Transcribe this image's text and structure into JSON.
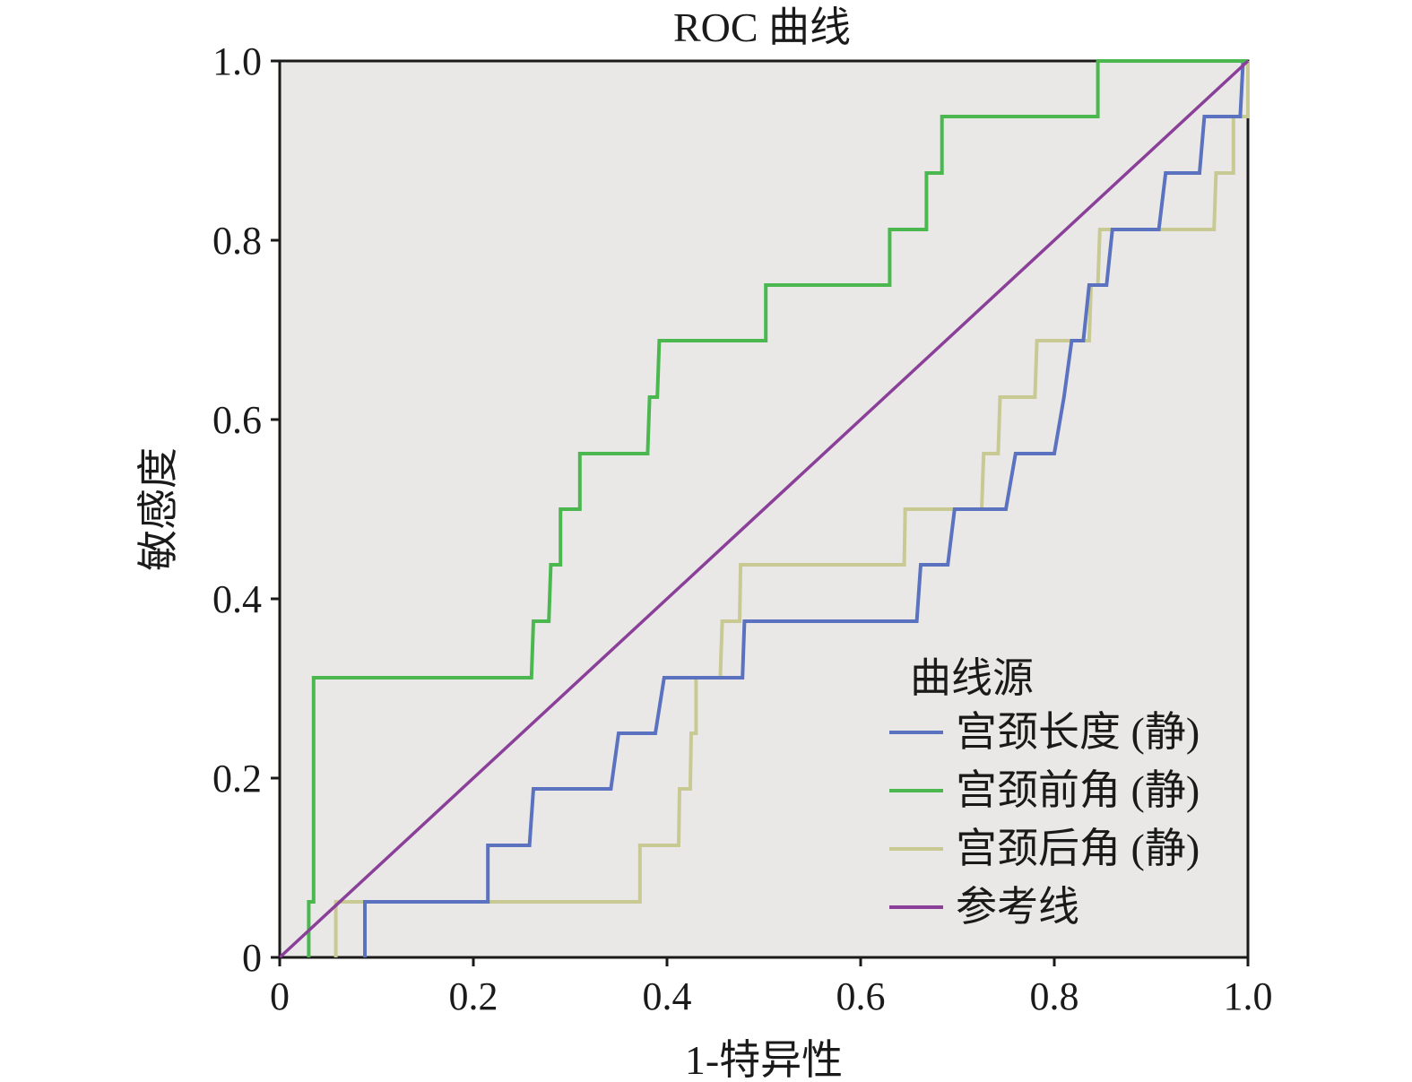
{
  "chart_data": {
    "type": "line",
    "title": "ROC 曲线",
    "xlabel": "1-特异性",
    "ylabel": "敏感度",
    "xlim": [
      0,
      1
    ],
    "ylim": [
      0,
      1
    ],
    "x_ticks": [
      0,
      0.2,
      0.4,
      0.6,
      0.8,
      1.0
    ],
    "y_ticks": [
      0,
      0.2,
      0.4,
      0.6,
      0.8,
      1.0
    ],
    "x_tick_labels": [
      "0",
      "0.2",
      "0.4",
      "0.6",
      "0.8",
      "1.0"
    ],
    "y_tick_labels": [
      "0",
      "0.2",
      "0.4",
      "0.6",
      "0.8",
      "1.0"
    ],
    "grid": false,
    "background": "#e9e8e7",
    "legend": {
      "title": "曲线源",
      "position": "bottom-right"
    },
    "series": [
      {
        "name": "宫颈长度 (静)",
        "color": "#5a72c0",
        "points": [
          [
            0.088,
            0
          ],
          [
            0.088,
            0.062
          ],
          [
            0.215,
            0.062
          ],
          [
            0.215,
            0.125
          ],
          [
            0.258,
            0.125
          ],
          [
            0.262,
            0.188
          ],
          [
            0.342,
            0.188
          ],
          [
            0.35,
            0.25
          ],
          [
            0.388,
            0.25
          ],
          [
            0.397,
            0.312
          ],
          [
            0.478,
            0.312
          ],
          [
            0.48,
            0.375
          ],
          [
            0.658,
            0.375
          ],
          [
            0.662,
            0.438
          ],
          [
            0.69,
            0.438
          ],
          [
            0.697,
            0.5
          ],
          [
            0.75,
            0.5
          ],
          [
            0.76,
            0.562
          ],
          [
            0.8,
            0.562
          ],
          [
            0.81,
            0.625
          ],
          [
            0.818,
            0.688
          ],
          [
            0.83,
            0.688
          ],
          [
            0.836,
            0.75
          ],
          [
            0.854,
            0.75
          ],
          [
            0.86,
            0.812
          ],
          [
            0.908,
            0.812
          ],
          [
            0.915,
            0.875
          ],
          [
            0.95,
            0.875
          ],
          [
            0.955,
            0.938
          ],
          [
            0.992,
            0.938
          ],
          [
            0.995,
            1.0
          ],
          [
            1.0,
            1.0
          ]
        ]
      },
      {
        "name": "宫颈前角 (静)",
        "color": "#4ab84e",
        "points": [
          [
            0.03,
            0
          ],
          [
            0.03,
            0.062
          ],
          [
            0.035,
            0.062
          ],
          [
            0.035,
            0.312
          ],
          [
            0.26,
            0.312
          ],
          [
            0.262,
            0.375
          ],
          [
            0.278,
            0.375
          ],
          [
            0.28,
            0.438
          ],
          [
            0.29,
            0.438
          ],
          [
            0.29,
            0.5
          ],
          [
            0.31,
            0.5
          ],
          [
            0.31,
            0.562
          ],
          [
            0.38,
            0.562
          ],
          [
            0.382,
            0.625
          ],
          [
            0.39,
            0.625
          ],
          [
            0.392,
            0.688
          ],
          [
            0.502,
            0.688
          ],
          [
            0.502,
            0.75
          ],
          [
            0.63,
            0.75
          ],
          [
            0.63,
            0.812
          ],
          [
            0.668,
            0.812
          ],
          [
            0.668,
            0.875
          ],
          [
            0.684,
            0.875
          ],
          [
            0.684,
            0.938
          ],
          [
            0.845,
            0.938
          ],
          [
            0.845,
            1.0
          ],
          [
            1.0,
            1.0
          ]
        ]
      },
      {
        "name": "宫颈后角 (静)",
        "color": "#c9c993",
        "points": [
          [
            0.058,
            0
          ],
          [
            0.058,
            0.062
          ],
          [
            0.372,
            0.062
          ],
          [
            0.372,
            0.125
          ],
          [
            0.412,
            0.125
          ],
          [
            0.413,
            0.188
          ],
          [
            0.424,
            0.188
          ],
          [
            0.425,
            0.25
          ],
          [
            0.43,
            0.25
          ],
          [
            0.43,
            0.312
          ],
          [
            0.455,
            0.312
          ],
          [
            0.457,
            0.375
          ],
          [
            0.475,
            0.375
          ],
          [
            0.476,
            0.438
          ],
          [
            0.645,
            0.438
          ],
          [
            0.646,
            0.5
          ],
          [
            0.725,
            0.5
          ],
          [
            0.727,
            0.562
          ],
          [
            0.742,
            0.562
          ],
          [
            0.744,
            0.625
          ],
          [
            0.78,
            0.625
          ],
          [
            0.782,
            0.688
          ],
          [
            0.836,
            0.688
          ],
          [
            0.838,
            0.75
          ],
          [
            0.845,
            0.75
          ],
          [
            0.847,
            0.812
          ],
          [
            0.965,
            0.812
          ],
          [
            0.967,
            0.875
          ],
          [
            0.985,
            0.875
          ],
          [
            0.985,
            0.938
          ],
          [
            1.0,
            0.938
          ],
          [
            1.0,
            1.0
          ]
        ]
      },
      {
        "name": "参考线",
        "color": "#8a3f98",
        "points": [
          [
            0,
            0
          ],
          [
            1,
            1
          ]
        ]
      }
    ]
  }
}
